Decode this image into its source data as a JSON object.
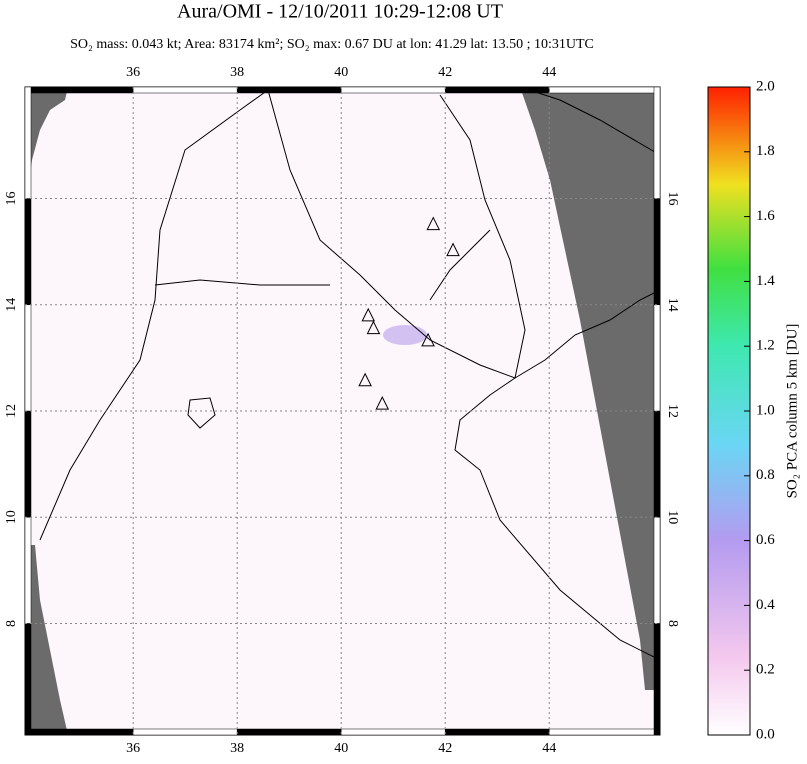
{
  "chart_data": {
    "type": "map",
    "title": "Aura/OMI - 12/10/2011 10:29-12:08 UT",
    "subtitle": "SO₂ mass: 0.043 kt; Area: 83174 km²; SO₂ max: 0.67 DU at lon: 41.29 lat: 13.50 ; 10:31UTC",
    "xlim": [
      33.92,
      46.13
    ],
    "xticks": [
      36,
      38,
      40,
      42,
      44
    ],
    "ylim": [
      5.9,
      18.1
    ],
    "yticks": [
      8,
      10,
      12,
      14,
      16
    ],
    "volcanoes": {
      "lon": [
        41.77,
        42.15,
        40.52,
        40.62,
        41.67,
        40.46,
        40.79
      ],
      "lat": [
        15.51,
        15.02,
        13.79,
        13.55,
        13.32,
        12.57,
        12.13
      ]
    },
    "colorbar": {
      "label": "SO₂ PCA column 5 km [DU]",
      "lim": [
        0,
        2
      ],
      "ticks": [
        {
          "value": 0,
          "label": "0.0"
        },
        0.2,
        0.4,
        0.6,
        0.8,
        {
          "value": 1,
          "label": "1.0"
        },
        1.2,
        1.4,
        1.6,
        1.8,
        {
          "value": 2,
          "label": "2.0"
        }
      ]
    }
  }
}
